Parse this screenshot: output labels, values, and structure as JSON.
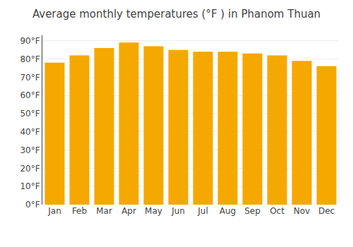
{
  "chart_data": {
    "type": "bar",
    "title": "Average monthly temperatures (°F ) in Phanom Thuan",
    "categories": [
      "Jan",
      "Feb",
      "Mar",
      "Apr",
      "May",
      "Jun",
      "Jul",
      "Aug",
      "Sep",
      "Oct",
      "Nov",
      "Dec"
    ],
    "values": [
      78,
      82,
      86,
      89,
      87,
      85,
      84,
      84,
      83,
      82,
      79,
      76
    ],
    "color": "#F5A800",
    "ylim": [
      0,
      93
    ],
    "yticks": [
      {
        "value": 0,
        "label": "0°F"
      },
      {
        "value": 10,
        "label": "10°F"
      },
      {
        "value": 20,
        "label": "20°F"
      },
      {
        "value": 30,
        "label": "30°F"
      },
      {
        "value": 40,
        "label": "40°F"
      },
      {
        "value": 50,
        "label": "50°F"
      },
      {
        "value": 60,
        "label": "60°F"
      },
      {
        "value": 70,
        "label": "70°F"
      },
      {
        "value": 80,
        "label": "80°F"
      },
      {
        "value": 90,
        "label": "90°F"
      }
    ],
    "grid": true
  }
}
